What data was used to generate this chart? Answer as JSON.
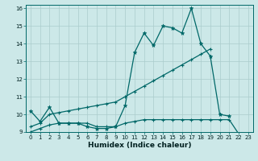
{
  "xlabel": "Humidex (Indice chaleur)",
  "x_values": [
    0,
    1,
    2,
    3,
    4,
    5,
    6,
    7,
    8,
    9,
    10,
    11,
    12,
    13,
    14,
    15,
    16,
    17,
    18,
    19,
    20,
    21,
    22,
    23
  ],
  "line1_y": [
    10.2,
    9.6,
    10.4,
    9.5,
    9.5,
    9.5,
    9.3,
    9.2,
    9.2,
    9.3,
    10.5,
    13.5,
    14.6,
    13.9,
    15.0,
    14.9,
    14.6,
    16.0,
    14.0,
    13.3,
    10.0,
    9.9,
    null,
    null
  ],
  "line2_y": [
    9.3,
    9.5,
    10.0,
    10.1,
    10.2,
    10.3,
    10.4,
    10.5,
    10.6,
    10.7,
    11.0,
    11.3,
    11.6,
    11.9,
    12.2,
    12.5,
    12.8,
    13.1,
    13.4,
    13.7,
    null,
    null,
    null,
    null
  ],
  "line3_y": [
    9.0,
    9.2,
    9.4,
    9.5,
    9.5,
    9.5,
    9.5,
    9.3,
    9.3,
    9.3,
    9.5,
    9.6,
    9.7,
    9.7,
    9.7,
    9.7,
    9.7,
    9.7,
    9.7,
    9.7,
    9.7,
    9.7,
    8.9,
    null
  ],
  "bg_color": "#cce8e8",
  "grid_color": "#aacccc",
  "line_color": "#006868",
  "ylim_min": 9.0,
  "ylim_max": 16.2,
  "xlim_min": -0.5,
  "xlim_max": 23.5,
  "yticks": [
    9,
    10,
    11,
    12,
    13,
    14,
    15,
    16
  ],
  "xticks": [
    0,
    1,
    2,
    3,
    4,
    5,
    6,
    7,
    8,
    9,
    10,
    11,
    12,
    13,
    14,
    15,
    16,
    17,
    18,
    19,
    20,
    21,
    22,
    23
  ],
  "tick_fontsize": 5.0,
  "xlabel_fontsize": 6.5
}
